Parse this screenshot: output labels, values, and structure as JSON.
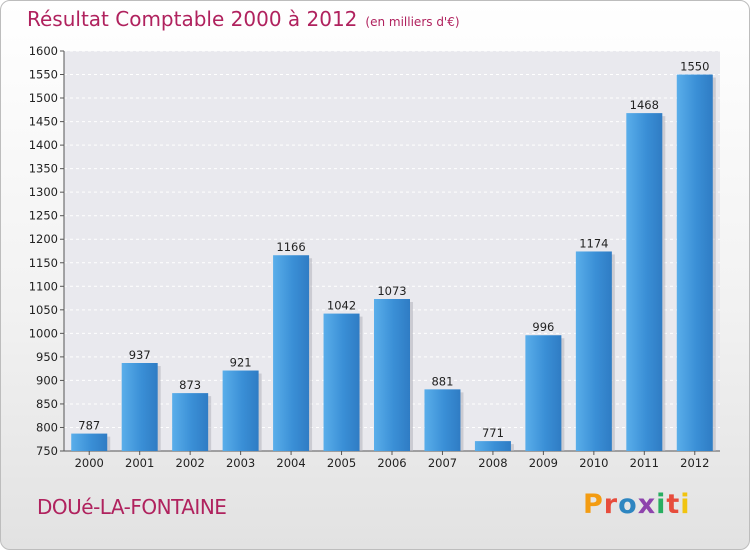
{
  "header": {
    "title": "Résultat Comptable 2000 à 2012",
    "subtitle": "(en milliers d'€)"
  },
  "footer": {
    "town": "DOUé-LA-FONTAINE",
    "logo": "Proxiti",
    "logo_colors": [
      "#f39c12",
      "#e74c3c",
      "#2e86c1",
      "#8e44ad",
      "#27ae60",
      "#e74c3c",
      "#f1c40f"
    ]
  },
  "chart_data": {
    "type": "bar",
    "categories": [
      "2000",
      "2001",
      "2002",
      "2003",
      "2004",
      "2005",
      "2006",
      "2007",
      "2008",
      "2009",
      "2010",
      "2011",
      "2012"
    ],
    "values": [
      787,
      937,
      873,
      921,
      1166,
      1042,
      1073,
      881,
      771,
      996,
      1174,
      1468,
      1550
    ],
    "ylim": [
      750,
      1600
    ],
    "yticks": [
      750,
      800,
      850,
      900,
      950,
      1000,
      1050,
      1100,
      1150,
      1200,
      1250,
      1300,
      1350,
      1400,
      1450,
      1500,
      1550,
      1600
    ],
    "grid": true,
    "bar_color": "#3a8fd6",
    "title": "Résultat Comptable 2000 à 2012",
    "xlabel": "",
    "ylabel": ""
  }
}
